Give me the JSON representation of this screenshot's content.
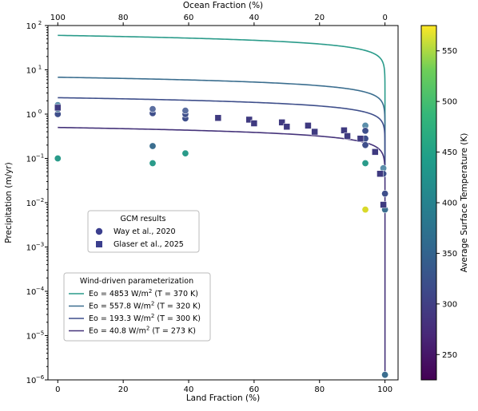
{
  "chart_data": {
    "type": "scatter",
    "xlabel": "Land Fraction (%)",
    "xlim": [
      -3,
      104
    ],
    "xticks": [
      0,
      20,
      40,
      60,
      80,
      100
    ],
    "top_xlabel": "Ocean Fraction (%)",
    "top_xticks": [
      100,
      80,
      60,
      40,
      20,
      0
    ],
    "ylabel": "Precipitation (m/yr)",
    "yscale": "log",
    "ylim": [
      1e-06,
      100
    ],
    "ytick_exponents": [
      -6,
      -5,
      -4,
      -3,
      -2,
      -1,
      0,
      1,
      2
    ],
    "colorbar": {
      "label": "Average Surface Temperature (K)",
      "range": [
        225,
        575
      ],
      "ticks": [
        250,
        300,
        350,
        400,
        450,
        500,
        550
      ],
      "colormap": "viridis"
    },
    "legend_gcm": {
      "title": "GCM results",
      "placement": "center-left",
      "entries": [
        {
          "label": "Way et al., 2020",
          "marker": "circle",
          "color": "#3b3f8e"
        },
        {
          "label": "Glaser et al., 2025",
          "marker": "square",
          "color": "#3b3f8e"
        }
      ]
    },
    "legend_param": {
      "title": "Wind-driven parameterization",
      "placement": "lower-left",
      "entries": [
        {
          "label": "Eo = 4853 W/m² (T = 370 K)",
          "text_main": "Eo = 4853 W/m",
          "text_sup": "2",
          "text_tail": " (T = 370 K)",
          "color": "#2a9b8a"
        },
        {
          "label": "Eo = 557.8 W/m² (T = 320 K)",
          "text_main": "Eo = 557.8 W/m",
          "text_sup": "2",
          "text_tail": " (T = 320 K)",
          "color": "#3b6e8f"
        },
        {
          "label": "Eo = 193.3 W/m² (T = 300 K)",
          "text_main": "Eo = 193.3 W/m",
          "text_sup": "2",
          "text_tail": " (T = 300 K)",
          "color": "#3f4f8b"
        },
        {
          "label": "Eo = 40.8 W/m² (T = 273 K)",
          "text_main": "Eo = 40.8 W/m",
          "text_sup": "2",
          "text_tail": " (T = 273 K)",
          "color": "#45337a"
        }
      ]
    },
    "series": [
      {
        "name": "Eo = 4853 W/m² (T = 370 K)",
        "kind": "line",
        "color": "#2a9b8a",
        "p0": 60,
        "p_end": 0.06
      },
      {
        "name": "Eo = 557.8 W/m² (T = 320 K)",
        "kind": "line",
        "color": "#3b6e8f",
        "p0": 6.8,
        "p_end": 0.05
      },
      {
        "name": "Eo = 193.3 W/m² (T = 300 K)",
        "kind": "line",
        "color": "#3f4f8b",
        "p0": 2.35,
        "p_end": 0.04
      },
      {
        "name": "Eo = 40.8 W/m² (T = 273 K)",
        "kind": "line",
        "color": "#45337a",
        "p0": 0.5,
        "p_end": 1.3e-06
      },
      {
        "name": "Way et al., 2020",
        "kind": "circle",
        "points": [
          [
            0,
            1.0,
            "#3f4f8b"
          ],
          [
            0,
            1.3,
            "#3b6e8f"
          ],
          [
            0,
            1.6,
            "#5b8eaa"
          ],
          [
            0,
            0.1,
            "#2a9b8a"
          ],
          [
            29,
            1.05,
            "#3f4f8b"
          ],
          [
            29,
            1.3,
            "#5b6ea0"
          ],
          [
            29,
            0.19,
            "#3b6e8f"
          ],
          [
            29,
            0.078,
            "#2a9b8a"
          ],
          [
            39,
            0.8,
            "#3f4f8b"
          ],
          [
            39,
            1.0,
            "#3f4f8b"
          ],
          [
            39,
            1.2,
            "#5b6ea0"
          ],
          [
            39,
            0.13,
            "#2a9b8a"
          ],
          [
            94,
            0.55,
            "#5b8eaa"
          ],
          [
            94,
            0.42,
            "#3f4f8b"
          ],
          [
            94,
            0.28,
            "#3f4f8b"
          ],
          [
            94,
            0.2,
            "#3f4f8b"
          ],
          [
            94,
            0.078,
            "#2a9b8a"
          ],
          [
            94,
            0.007,
            "#d9d92a"
          ],
          [
            99.5,
            0.06,
            "#5b8eaa"
          ],
          [
            99.5,
            0.045,
            "#3f4f8b"
          ],
          [
            100,
            0.016,
            "#3f4f8b"
          ],
          [
            100,
            0.007,
            "#3b6e8f"
          ],
          [
            100,
            1.3e-06,
            "#3b6e8f"
          ]
        ]
      },
      {
        "name": "Glaser et al., 2025",
        "kind": "square",
        "points": [
          [
            0,
            1.4,
            "#3f3a80"
          ],
          [
            49,
            0.82,
            "#3f3a80"
          ],
          [
            58.5,
            0.75,
            "#3f3a80"
          ],
          [
            60,
            0.62,
            "#3f3a80"
          ],
          [
            68.5,
            0.65,
            "#3f3a80"
          ],
          [
            70,
            0.52,
            "#3f3a80"
          ],
          [
            76.5,
            0.55,
            "#3f3a80"
          ],
          [
            78.5,
            0.4,
            "#3f3a80"
          ],
          [
            87.5,
            0.43,
            "#3f3a80"
          ],
          [
            88.5,
            0.32,
            "#3f3a80"
          ],
          [
            92.5,
            0.28,
            "#3f3a80"
          ],
          [
            97,
            0.14,
            "#3f3a80"
          ],
          [
            98.5,
            0.045,
            "#3f3a80"
          ],
          [
            99.5,
            0.009,
            "#3f3a80"
          ]
        ]
      }
    ]
  }
}
